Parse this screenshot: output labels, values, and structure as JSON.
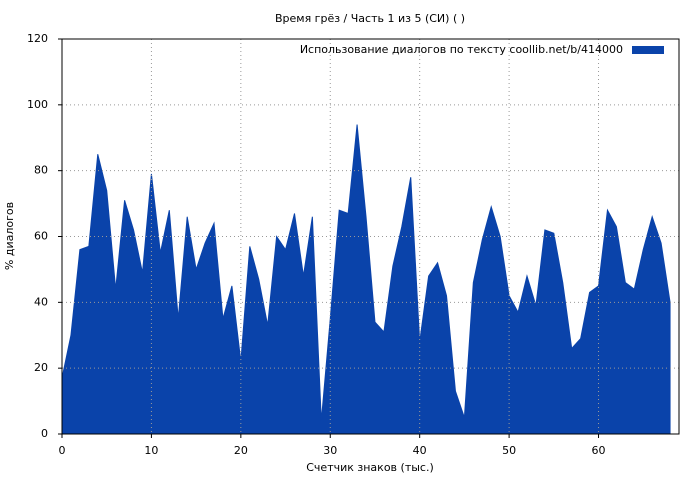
{
  "chart_data": {
    "type": "area",
    "title": "Время грёз / Часть 1 из 5 (СИ) ( )",
    "xlabel": "Счетчик знаков (тыс.)",
    "ylabel": "% диалогов",
    "x": [
      0,
      1,
      2,
      3,
      4,
      5,
      6,
      7,
      8,
      9,
      10,
      11,
      12,
      13,
      14,
      15,
      16,
      17,
      18,
      19,
      20,
      21,
      22,
      23,
      24,
      25,
      26,
      27,
      28,
      29,
      30,
      31,
      32,
      33,
      34,
      35,
      36,
      37,
      38,
      39,
      40,
      41,
      42,
      43,
      44,
      45,
      46,
      47,
      48,
      49,
      50,
      51,
      52,
      53,
      54,
      55,
      56,
      57,
      58,
      59,
      60,
      61,
      62,
      63,
      64,
      65,
      66,
      67,
      68
    ],
    "series": [
      {
        "name": "Использование диалогов по тексту  coollib.net/b/414000",
        "color": "#0a43aa",
        "values": [
          17,
          30,
          56,
          57,
          85,
          74,
          44,
          71,
          62,
          49,
          79,
          55,
          68,
          35,
          66,
          50,
          58,
          64,
          35,
          45,
          22,
          57,
          47,
          33,
          60,
          56,
          67,
          48,
          66,
          4,
          35,
          68,
          67,
          94,
          66,
          34,
          31,
          51,
          63,
          78,
          28,
          48,
          52,
          42,
          13,
          5,
          46,
          59,
          69,
          60,
          42,
          37,
          48,
          39,
          62,
          61,
          46,
          26,
          29,
          43,
          45,
          68,
          63,
          46,
          44,
          56,
          66,
          58,
          40
        ]
      }
    ],
    "xlim": [
      0,
      69
    ],
    "xticks": [
      0,
      10,
      20,
      30,
      40,
      50,
      60
    ],
    "ylim": [
      0,
      120
    ],
    "yticks": [
      0,
      20,
      40,
      60,
      80,
      100,
      120
    ],
    "grid": true,
    "legend": "top-right"
  }
}
